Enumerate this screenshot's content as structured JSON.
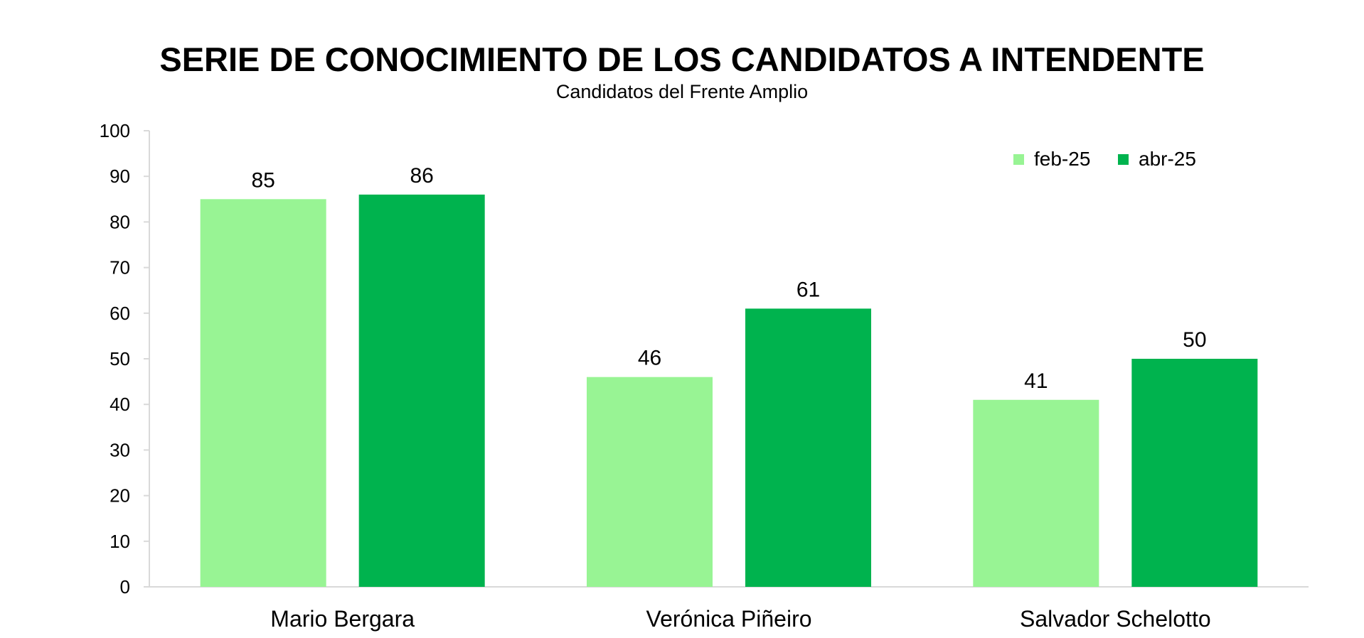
{
  "chart_data": {
    "type": "bar",
    "title": "SERIE DE CONOCIMIENTO DE LOS CANDIDATOS A INTENDENTE",
    "subtitle": "Candidatos del Frente Amplio",
    "xlabel": "",
    "ylabel": "",
    "categories": [
      "Mario Bergara",
      "Verónica Piñeiro",
      "Salvador Schelotto"
    ],
    "series": [
      {
        "name": "feb-25",
        "color": "#98f494",
        "values": [
          85,
          46,
          41
        ]
      },
      {
        "name": "abr-25",
        "color": "#00b34e",
        "values": [
          86,
          61,
          50
        ]
      }
    ],
    "ylim": [
      0,
      100
    ],
    "yticks": [
      0,
      10,
      20,
      30,
      40,
      50,
      60,
      70,
      80,
      90,
      100
    ],
    "legend_position": "top-right",
    "grid": false,
    "data_labels": true
  }
}
